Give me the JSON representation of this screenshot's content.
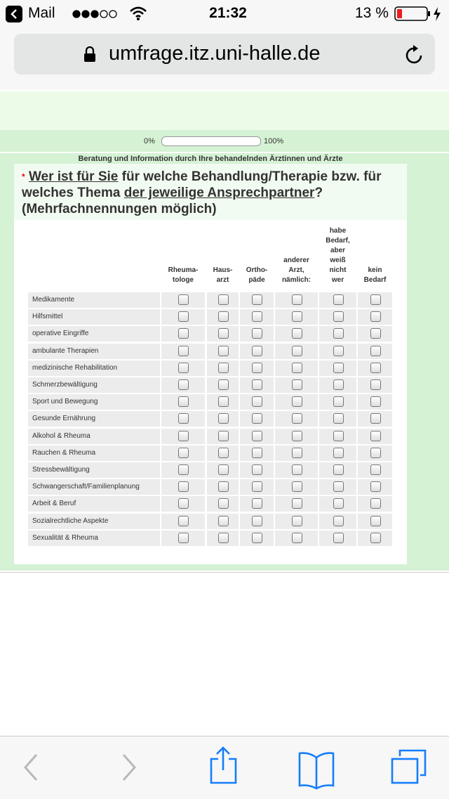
{
  "status_bar": {
    "back_app": "Mail",
    "time": "21:32",
    "battery": "13 %"
  },
  "address_bar": {
    "url": "umfrage.itz.uni-halle.de"
  },
  "progress": {
    "start": "0%",
    "end": "100%"
  },
  "section_title": "Beratung und Information durch Ihre behandelnden Ärztinnen und Ärzte",
  "question": {
    "required_marker": "*",
    "parts": [
      "Wer ist für Sie",
      " für welche Behandlung/Therapie bzw. für welches Thema ",
      "der jeweilige Ansprechpartner",
      "? (Mehrfachnennungen möglich)"
    ]
  },
  "table": {
    "columns": [
      [
        "Rheuma-",
        "tologe"
      ],
      [
        "Haus-",
        "arzt"
      ],
      [
        "Ortho-",
        "päde"
      ],
      [
        "anderer",
        "Arzt,",
        "nämlich:"
      ],
      [
        "habe",
        "Bedarf,",
        "aber",
        "weiß",
        "nicht",
        "wer"
      ],
      [
        "kein",
        "Bedarf"
      ]
    ],
    "rows": [
      "Medikamente",
      "Hilfsmittel",
      "operative Eingriffe",
      "ambulante Therapien",
      "medizinische Rehabilitation",
      "Schmerzbewältigung",
      "Sport und Bewegung",
      "Gesunde Ernährung",
      "Alkohol & Rheuma",
      "Rauchen & Rheuma",
      "Stressbewältigung",
      "Schwangerschaft/Familienplanung",
      "Arbeit & Beruf",
      "Sozialrechtliche Aspekte",
      "Sexualität & Rheuma"
    ]
  }
}
